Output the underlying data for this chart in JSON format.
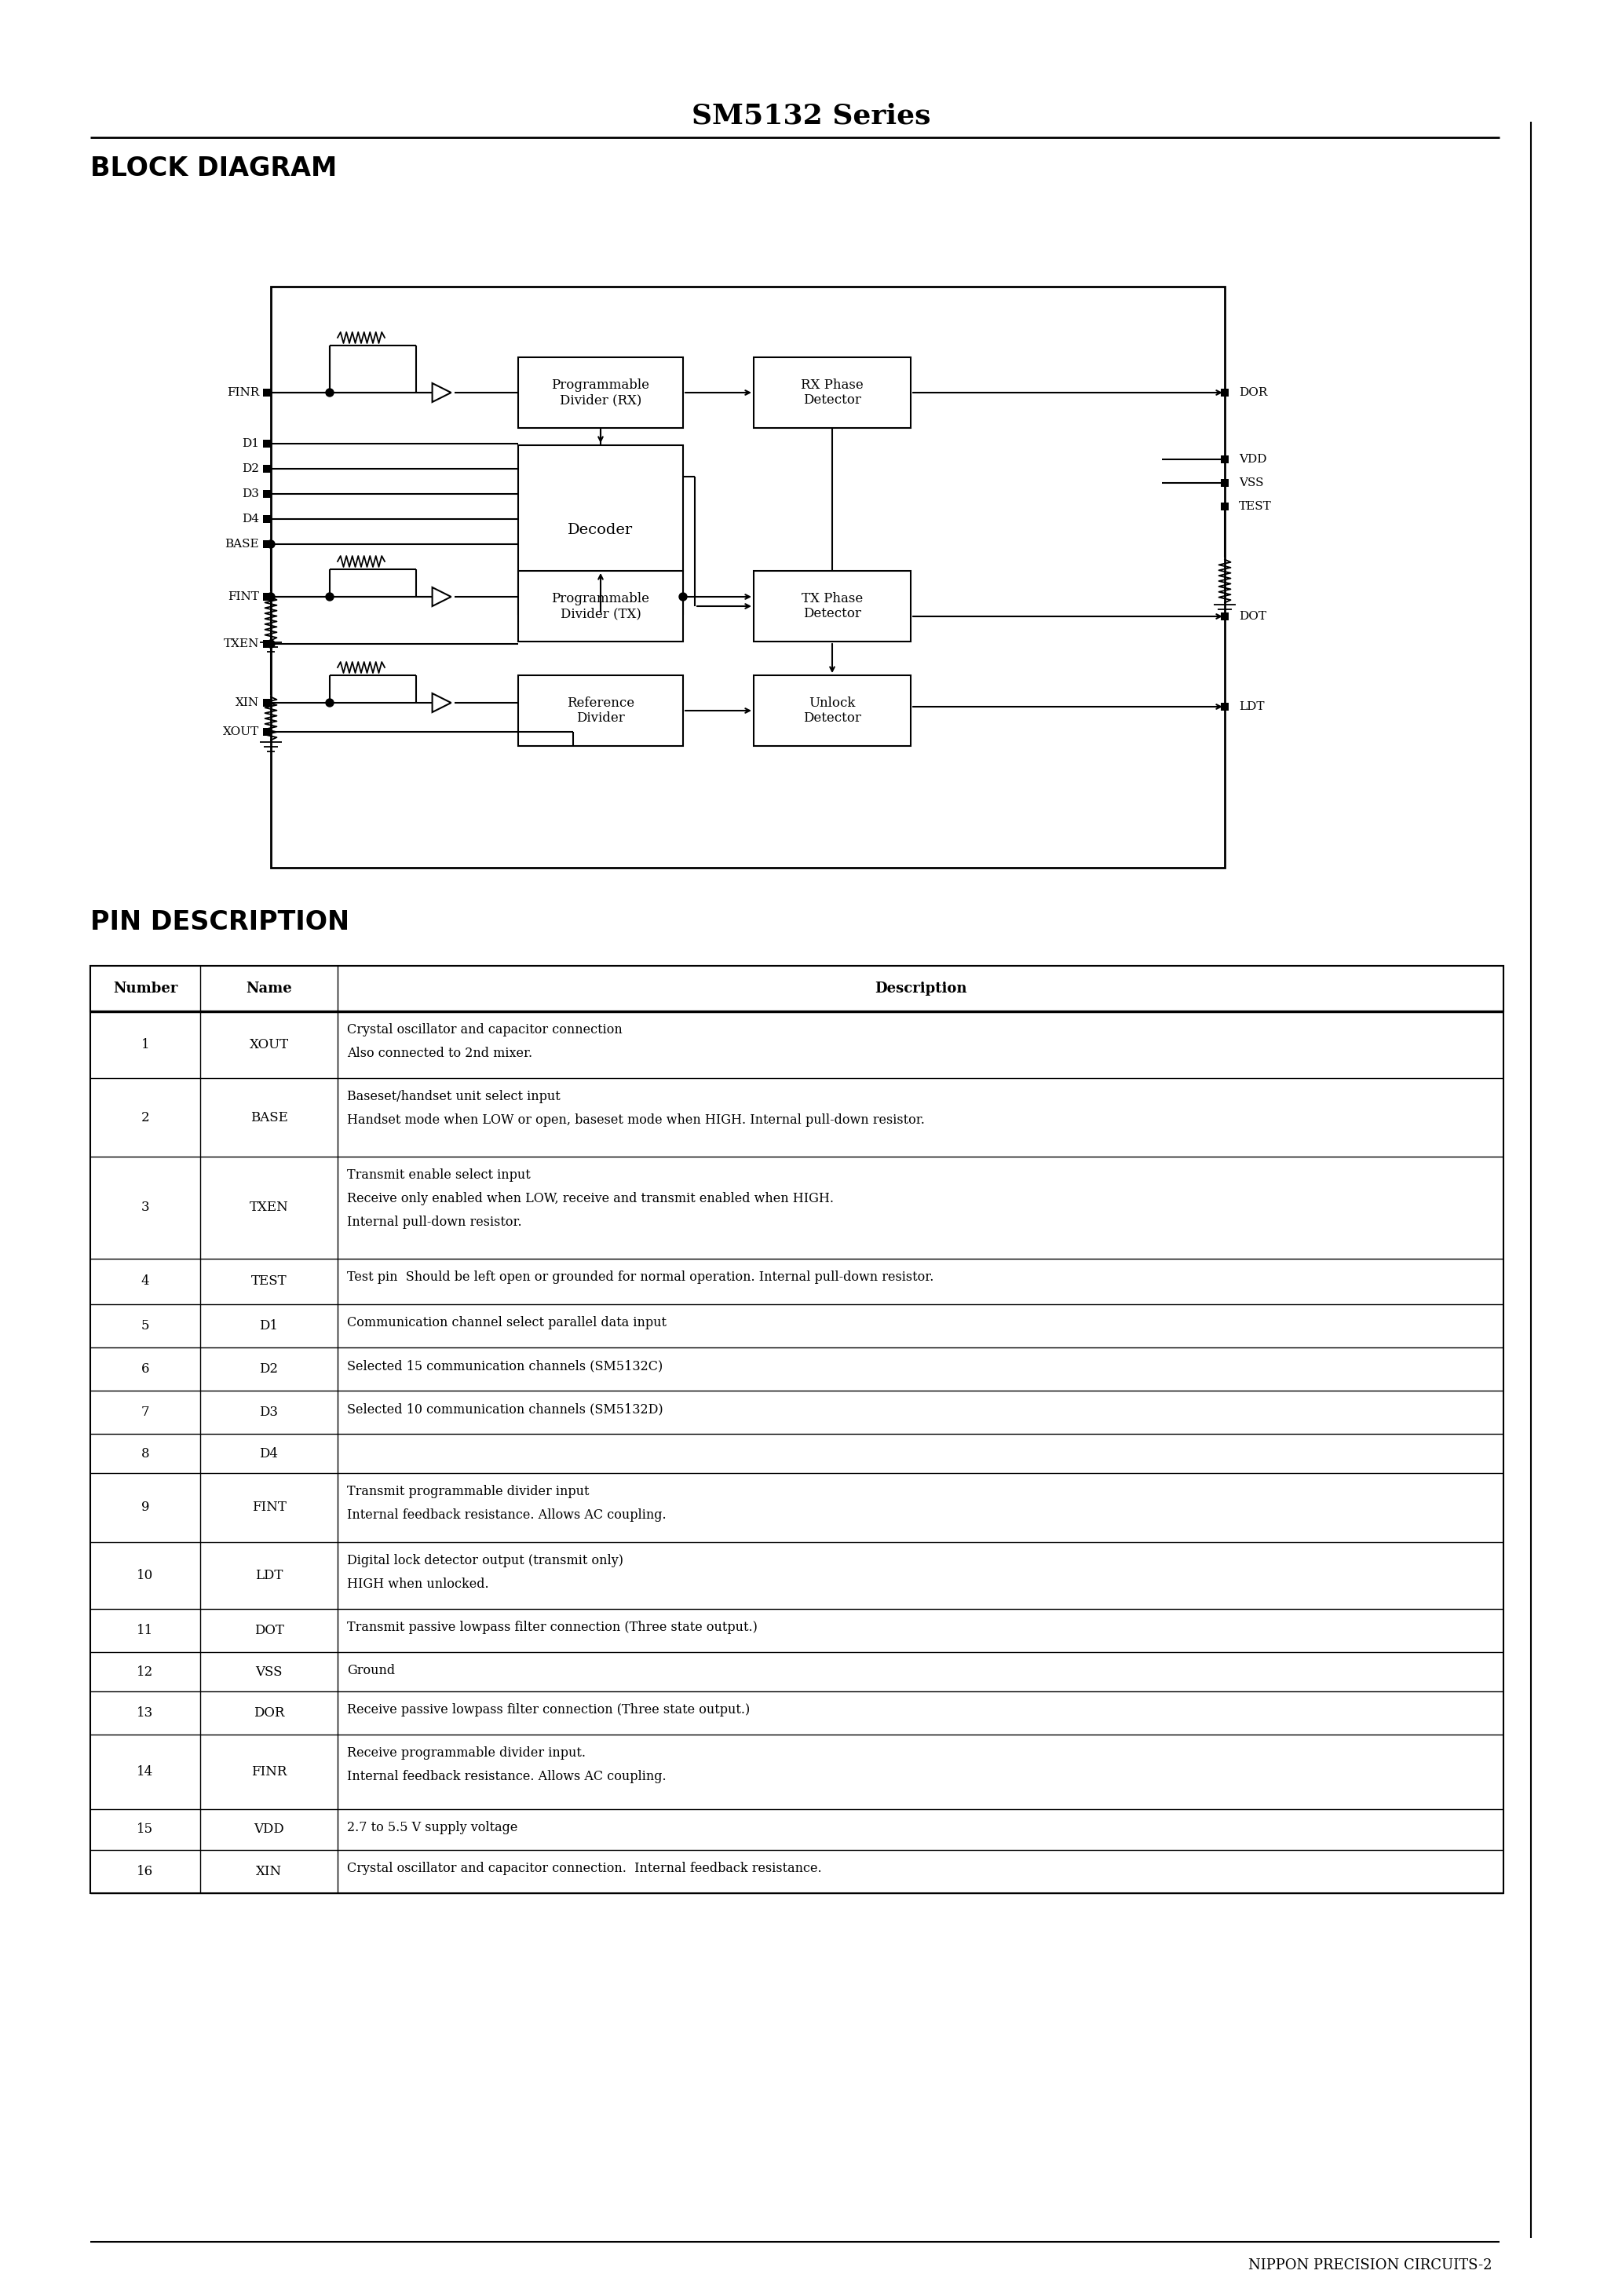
{
  "title": "SM5132 Series",
  "section1": "BLOCK DIAGRAM",
  "section2": "PIN DESCRIPTION",
  "footer": "NIPPON PRECISION CIRCUITS-2",
  "pin_table_headers": [
    "Number",
    "Name",
    "Description"
  ],
  "pin_data": [
    [
      "1",
      "XOUT",
      "Crystal oscillator and capacitor connection\nAlso connected to 2nd mixer."
    ],
    [
      "2",
      "BASE",
      "Baseset/handset unit select input\nHandset mode when LOW or open, baseset mode when HIGH. Internal pull-down resistor."
    ],
    [
      "3",
      "TXEN",
      "Transmit enable select input\nReceive only enabled when LOW, receive and transmit enabled when HIGH.\nInternal pull-down resistor."
    ],
    [
      "4",
      "TEST",
      "Test pin  Should be left open or grounded for normal operation. Internal pull-down resistor."
    ],
    [
      "5",
      "D1",
      "Communication channel select parallel data input"
    ],
    [
      "6",
      "D2",
      "Selected 15 communication channels (SM5132C)"
    ],
    [
      "7",
      "D3",
      "Selected 10 communication channels (SM5132D)"
    ],
    [
      "8",
      "D4",
      ""
    ],
    [
      "9",
      "FINT",
      "Transmit programmable divider input\nInternal feedback resistance. Allows AC coupling."
    ],
    [
      "10",
      "LDT",
      "Digital lock detector output (transmit only)\nHIGH when unlocked."
    ],
    [
      "11",
      "DOT",
      "Transmit passive lowpass filter connection (Three state output.)"
    ],
    [
      "12",
      "VSS",
      "Ground"
    ],
    [
      "13",
      "DOR",
      "Receive passive lowpass filter connection (Three state output.)"
    ],
    [
      "14",
      "FINR",
      "Receive programmable divider input.\nInternal feedback resistance. Allows AC coupling."
    ],
    [
      "15",
      "VDD",
      "2.7 to 5.5 V supply voltage"
    ],
    [
      "16",
      "XIN",
      "Crystal oscillator and capacitor connection.  Internal feedback resistance."
    ]
  ],
  "bg_color": "#ffffff",
  "text_color": "#000000"
}
